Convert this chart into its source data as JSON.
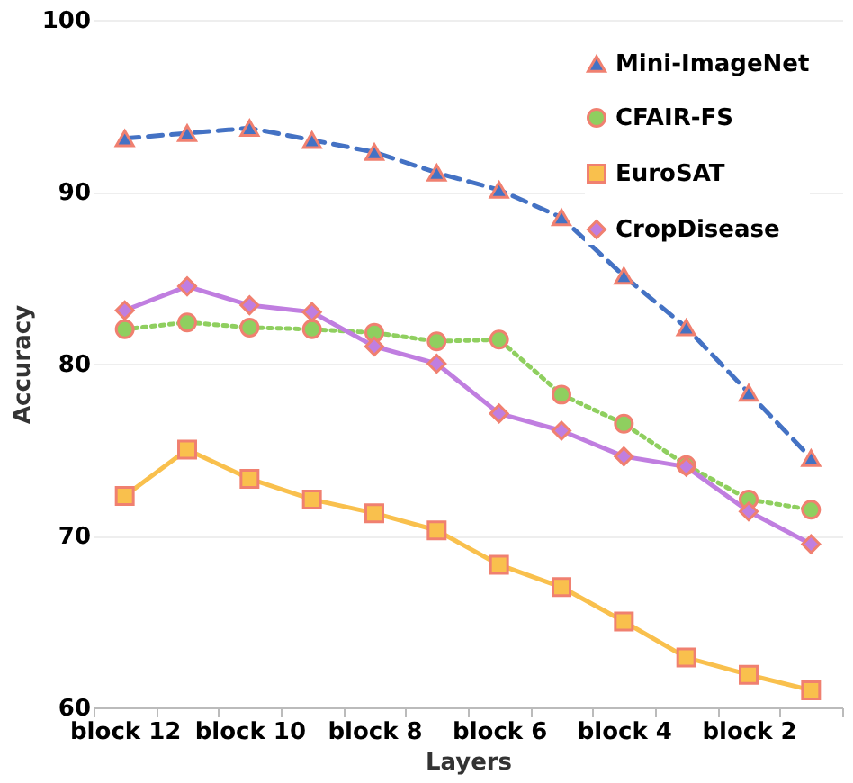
{
  "chart_data": {
    "type": "line",
    "xlabel": "Layers",
    "ylabel": "Accuracy",
    "categories": [
      "block 12",
      null,
      "block 10",
      null,
      "block 8",
      null,
      "block 6",
      null,
      "block 4",
      null,
      "block 2",
      null
    ],
    "ylim": [
      60,
      100
    ],
    "yticks": [
      60,
      70,
      80,
      90,
      100
    ],
    "grid": "y",
    "legend": "top right",
    "series": [
      {
        "name": "Mini-ImageNet",
        "color": "#4472c4",
        "marker": "triangle",
        "line_style": "dashed",
        "values": [
          93.1,
          93.4,
          93.7,
          93.0,
          92.3,
          91.1,
          90.1,
          88.5,
          85.1,
          82.1,
          78.3,
          74.5
        ]
      },
      {
        "name": "CFAIR-FS",
        "color": "#8fcf5f",
        "marker": "circle",
        "line_style": "dotted",
        "values": [
          82.0,
          82.4,
          82.1,
          82.0,
          81.8,
          81.3,
          81.4,
          78.2,
          76.5,
          74.1,
          72.1,
          71.5
        ]
      },
      {
        "name": "EuroSAT",
        "color": "#f9c04d",
        "marker": "square",
        "line_style": "solid",
        "values": [
          72.3,
          75.0,
          73.3,
          72.1,
          71.3,
          70.3,
          68.3,
          67.0,
          65.0,
          62.9,
          61.9,
          61.0
        ]
      },
      {
        "name": "CropDisease",
        "color": "#c07ee0",
        "marker": "diamond",
        "line_style": "solid",
        "values": [
          83.1,
          84.5,
          83.4,
          83.0,
          81.0,
          80.0,
          77.1,
          76.1,
          74.6,
          74.0,
          71.4,
          69.5
        ]
      }
    ]
  }
}
